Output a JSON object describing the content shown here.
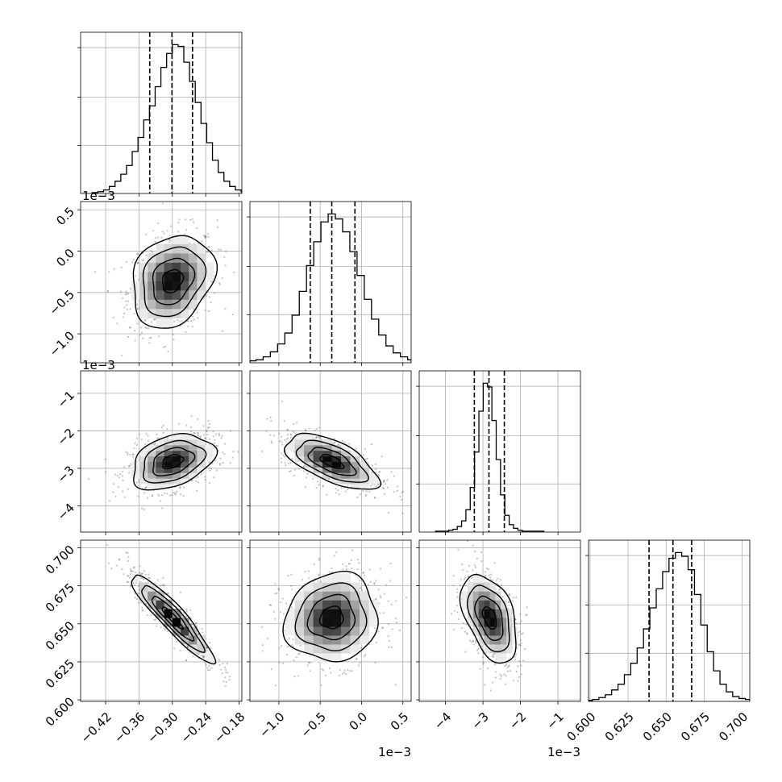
{
  "chart_data": {
    "type": "corner",
    "n_params": 4,
    "quantiles": [
      0.16,
      0.5,
      0.84
    ],
    "grid": true,
    "params": [
      {
        "range": [
          -0.465,
          -0.175
        ],
        "ticks": [
          "-0.42",
          "-0.36",
          "-0.30",
          "-0.24",
          "-0.18"
        ],
        "tick_values": [
          -0.42,
          -0.36,
          -0.3,
          -0.24,
          -0.18
        ],
        "offset_label": "",
        "mean": -0.3,
        "std": 0.037,
        "quantile_values": [
          -0.3407,
          -0.3007,
          -0.2637
        ]
      },
      {
        "range": [
          -1.35,
          0.6
        ],
        "ticks": [
          "-1.0",
          "-0.5",
          "0.0",
          "0.5"
        ],
        "tick_values": [
          -1.0,
          -0.5,
          0.0,
          0.5
        ],
        "offset_label": "1e−3",
        "mean": -0.36,
        "std": 0.28,
        "quantile_values": [
          -0.62,
          -0.36,
          -0.08
        ]
      },
      {
        "range": [
          -4.7,
          -0.4
        ],
        "ticks": [
          "-4",
          "-3",
          "-2",
          "-1"
        ],
        "tick_values": [
          -4,
          -3,
          -2,
          -1
        ],
        "offset_label": "1e−3",
        "mean": -2.82,
        "std": 0.37,
        "quantile_values": [
          -3.23,
          -2.84,
          -2.43
        ]
      },
      {
        "range": [
          0.599,
          0.705
        ],
        "ticks": [
          "0.600",
          "0.625",
          "0.650",
          "0.675",
          "0.700"
        ],
        "tick_values": [
          0.6,
          0.625,
          0.65,
          0.675,
          0.7
        ],
        "offset_label": "",
        "mean": 0.654,
        "std": 0.0145,
        "quantile_values": [
          0.6388,
          0.6545,
          0.6668
        ]
      }
    ],
    "hist_counts": [
      [
        1,
        2,
        4,
        8,
        14,
        22,
        32,
        48,
        64,
        84,
        100,
        122,
        144,
        160,
        170,
        168,
        150,
        128,
        104,
        80,
        58,
        38,
        24,
        14,
        8,
        4,
        2,
        1
      ],
      [
        1,
        2,
        3,
        6,
        11,
        19,
        30,
        48,
        72,
        98,
        122,
        142,
        150,
        145,
        132,
        112,
        88,
        64,
        44,
        28,
        17,
        10,
        6,
        3,
        2
      ],
      [
        1,
        1,
        1,
        2,
        3,
        6,
        12,
        24,
        48,
        86,
        130,
        160,
        156,
        120,
        78,
        40,
        18,
        8,
        4,
        2,
        1,
        1,
        1,
        1,
        1
      ],
      [
        1,
        2,
        4,
        7,
        12,
        18,
        28,
        40,
        56,
        76,
        98,
        118,
        136,
        150,
        156,
        152,
        138,
        112,
        80,
        52,
        32,
        18,
        10,
        5,
        3,
        2,
        1
      ]
    ],
    "correlations": {
      "1-0": 0.22,
      "2-0": 0.35,
      "2-1": -0.62,
      "3-0": -0.92,
      "3-1": 0.08,
      "3-2": -0.45
    }
  }
}
